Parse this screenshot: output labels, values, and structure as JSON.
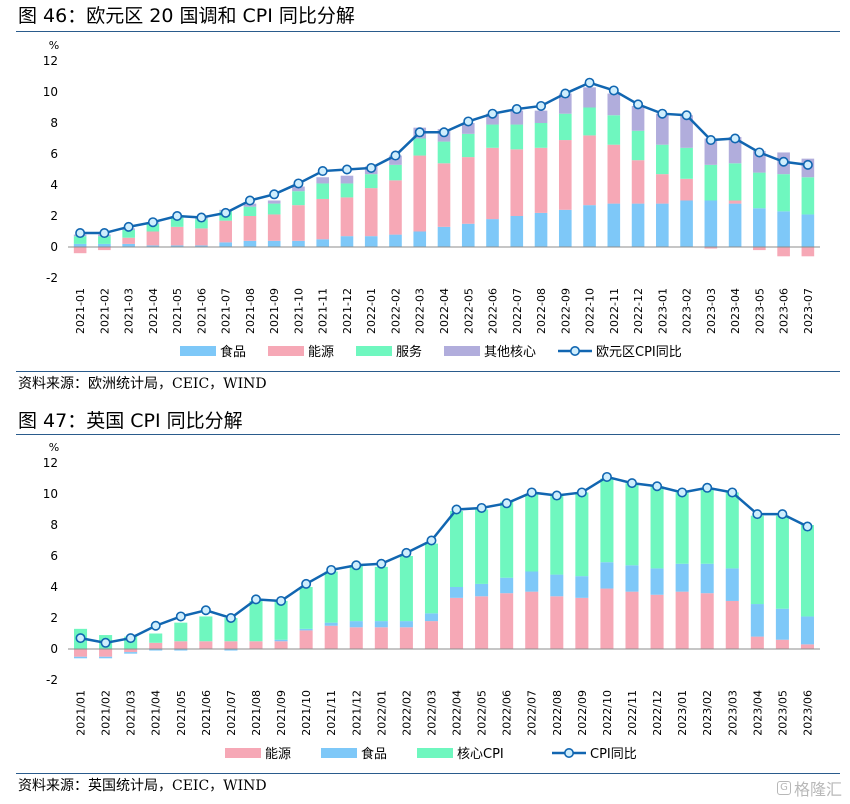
{
  "figures": [
    {
      "title": "图 46：欧元区 20 国调和 CPI 同比分解",
      "source": "资料来源：欧洲统计局，CEIC，WIND"
    },
    {
      "title": "图 47：英国 CPI 同比分解",
      "source": "资料来源：英国统计局，CEIC，WIND"
    }
  ],
  "watermark": {
    "box_glyph": "G",
    "text": "格隆汇"
  },
  "chart_data": [
    {
      "type": "bar",
      "stacked": true,
      "unit": "%",
      "ylim": [
        -2,
        12
      ],
      "yticks": [
        -2,
        0,
        2,
        4,
        6,
        8,
        10,
        12
      ],
      "grid": false,
      "legend_position": "bottom",
      "categories": [
        "2021-01",
        "2021-02",
        "2021-03",
        "2021-04",
        "2021-05",
        "2021-06",
        "2021-07",
        "2021-08",
        "2021-09",
        "2021-10",
        "2021-11",
        "2021-12",
        "2022-01",
        "2022-02",
        "2022-03",
        "2022-04",
        "2022-05",
        "2022-06",
        "2022-07",
        "2022-08",
        "2022-09",
        "2022-10",
        "2022-11",
        "2022-12",
        "2023-01",
        "2023-02",
        "2023-03",
        "2023-04",
        "2023-05",
        "2023-06",
        "2023-07"
      ],
      "series": [
        {
          "name": "食品",
          "kind": "bar",
          "color": "#7ec8f8",
          "values": [
            0.2,
            0.2,
            0.2,
            0.1,
            0.1,
            0.1,
            0.3,
            0.4,
            0.4,
            0.4,
            0.5,
            0.7,
            0.7,
            0.8,
            1.0,
            1.3,
            1.5,
            1.8,
            2.0,
            2.2,
            2.4,
            2.7,
            2.8,
            2.8,
            2.8,
            3.0,
            3.0,
            2.8,
            2.5,
            2.3,
            2.1
          ]
        },
        {
          "name": "能源",
          "kind": "bar",
          "color": "#f6a8b6",
          "values": [
            -0.4,
            -0.2,
            0.4,
            0.9,
            1.2,
            1.1,
            1.4,
            1.6,
            1.7,
            2.3,
            2.6,
            2.5,
            3.1,
            3.5,
            4.9,
            4.1,
            4.3,
            4.6,
            4.3,
            4.2,
            4.5,
            4.5,
            3.8,
            2.8,
            1.9,
            1.4,
            -0.1,
            0.2,
            -0.2,
            -0.6,
            -0.6
          ]
        },
        {
          "name": "服务",
          "kind": "bar",
          "color": "#6ff7bf",
          "values": [
            0.5,
            0.5,
            0.5,
            0.5,
            0.6,
            0.6,
            0.6,
            0.6,
            0.7,
            0.9,
            1.0,
            0.9,
            0.9,
            1.0,
            1.1,
            1.4,
            1.5,
            1.5,
            1.6,
            1.6,
            1.7,
            1.8,
            1.9,
            1.9,
            1.9,
            2.0,
            2.3,
            2.4,
            2.3,
            2.4,
            2.4
          ]
        },
        {
          "name": "其他核心",
          "kind": "bar",
          "color": "#b1addc",
          "values": [
            0.1,
            0.1,
            0.1,
            0.1,
            0.1,
            0.1,
            0.1,
            0.2,
            0.2,
            0.3,
            0.4,
            0.5,
            0.5,
            0.6,
            0.7,
            0.8,
            0.7,
            0.7,
            0.9,
            0.8,
            1.3,
            1.3,
            1.4,
            1.6,
            2.0,
            2.1,
            1.7,
            1.7,
            1.4,
            1.4,
            1.2
          ]
        },
        {
          "name": "欧元区CPI同比",
          "kind": "line",
          "color": "#1166b1",
          "values": [
            0.9,
            0.9,
            1.3,
            1.6,
            2.0,
            1.9,
            2.2,
            3.0,
            3.4,
            4.1,
            4.9,
            5.0,
            5.1,
            5.9,
            7.4,
            7.4,
            8.1,
            8.6,
            8.9,
            9.1,
            9.9,
            10.6,
            10.1,
            9.2,
            8.6,
            8.5,
            6.9,
            7.0,
            6.1,
            5.5,
            5.3
          ]
        }
      ]
    },
    {
      "type": "bar",
      "stacked": true,
      "unit": "%",
      "ylim": [
        -2,
        12
      ],
      "yticks": [
        -2,
        0,
        2,
        4,
        6,
        8,
        10,
        12
      ],
      "grid": false,
      "legend_position": "bottom",
      "categories": [
        "2021/01",
        "2021/02",
        "2021/03",
        "2021/04",
        "2021/05",
        "2021/06",
        "2021/07",
        "2021/08",
        "2021/09",
        "2021/10",
        "2021/11",
        "2021/12",
        "2022/01",
        "2022/02",
        "2022/03",
        "2022/04",
        "2022/05",
        "2022/06",
        "2022/07",
        "2022/08",
        "2022/09",
        "2022/10",
        "2022/11",
        "2022/12",
        "2023/01",
        "2023/02",
        "2023/03",
        "2023/04",
        "2023/05",
        "2023/06"
      ],
      "series": [
        {
          "name": "能源",
          "kind": "bar",
          "color": "#f6a8b6",
          "values": [
            -0.5,
            -0.5,
            -0.2,
            0.4,
            0.5,
            0.5,
            0.5,
            0.5,
            0.5,
            1.2,
            1.5,
            1.4,
            1.4,
            1.4,
            1.8,
            3.3,
            3.4,
            3.6,
            3.7,
            3.4,
            3.3,
            3.9,
            3.7,
            3.5,
            3.7,
            3.6,
            3.1,
            0.8,
            0.6,
            0.3
          ]
        },
        {
          "name": "食品",
          "kind": "bar",
          "color": "#7ec8f8",
          "values": [
            -0.1,
            -0.1,
            -0.1,
            -0.1,
            -0.1,
            0.0,
            -0.1,
            0.0,
            0.1,
            0.1,
            0.2,
            0.4,
            0.4,
            0.4,
            0.5,
            0.7,
            0.8,
            1.0,
            1.3,
            1.4,
            1.4,
            1.7,
            1.7,
            1.7,
            1.8,
            1.9,
            2.1,
            2.1,
            2.0,
            1.8
          ]
        },
        {
          "name": "核心CPI",
          "kind": "bar",
          "color": "#6ff7bf",
          "values": [
            1.3,
            0.9,
            0.8,
            0.6,
            1.2,
            1.6,
            1.5,
            2.6,
            2.5,
            2.7,
            3.3,
            3.6,
            3.5,
            4.2,
            4.5,
            4.9,
            4.8,
            4.9,
            5.0,
            5.1,
            5.4,
            5.4,
            5.3,
            5.3,
            4.6,
            4.8,
            4.9,
            5.7,
            6.0,
            5.9
          ]
        },
        {
          "name": "CPI同比",
          "kind": "line",
          "color": "#1166b1",
          "values": [
            0.7,
            0.4,
            0.7,
            1.5,
            2.1,
            2.5,
            2.0,
            3.2,
            3.1,
            4.2,
            5.1,
            5.4,
            5.5,
            6.2,
            7.0,
            9.0,
            9.1,
            9.4,
            10.1,
            9.9,
            10.1,
            11.1,
            10.7,
            10.5,
            10.1,
            10.4,
            10.1,
            8.7,
            8.7,
            7.9
          ]
        }
      ]
    }
  ]
}
